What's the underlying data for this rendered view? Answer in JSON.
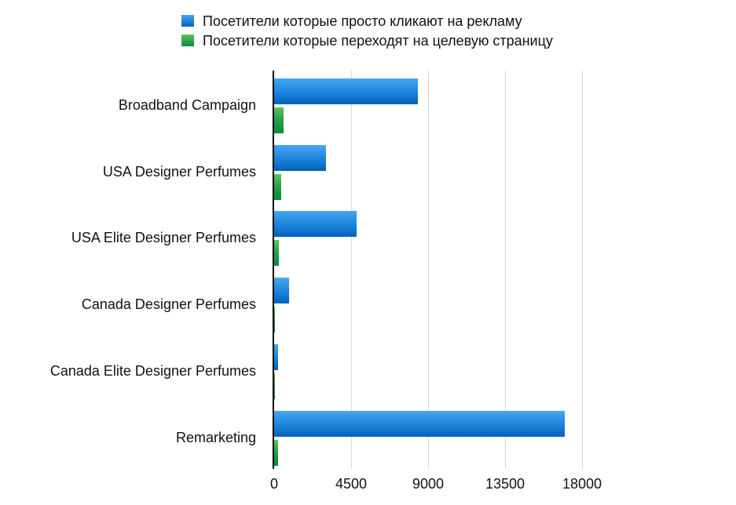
{
  "chart_data": {
    "type": "bar",
    "orientation": "horizontal",
    "title": "",
    "xlabel": "",
    "ylabel": "",
    "categories": [
      "Broadband Campaign",
      "USA Designer Perfumes",
      "USA Elite Designer Perfumes",
      "Canada Designer Perfumes",
      "Canada Elite Designer Perfumes",
      "Remarketing"
    ],
    "series": [
      {
        "name": "Посетители которые просто кликают на рекламу",
        "color": "#1f86dd",
        "values": [
          8400,
          3050,
          4800,
          870,
          230,
          17000
        ]
      },
      {
        "name": "Посетители которые переходят на целевую страницу",
        "color": "#26a14a",
        "values": [
          550,
          400,
          280,
          50,
          40,
          230
        ]
      }
    ],
    "xlim": [
      0,
      22500
    ],
    "xticks": [
      "0",
      "4500",
      "9000",
      "13500",
      "18000"
    ],
    "grid": true,
    "legend_position": "top"
  }
}
